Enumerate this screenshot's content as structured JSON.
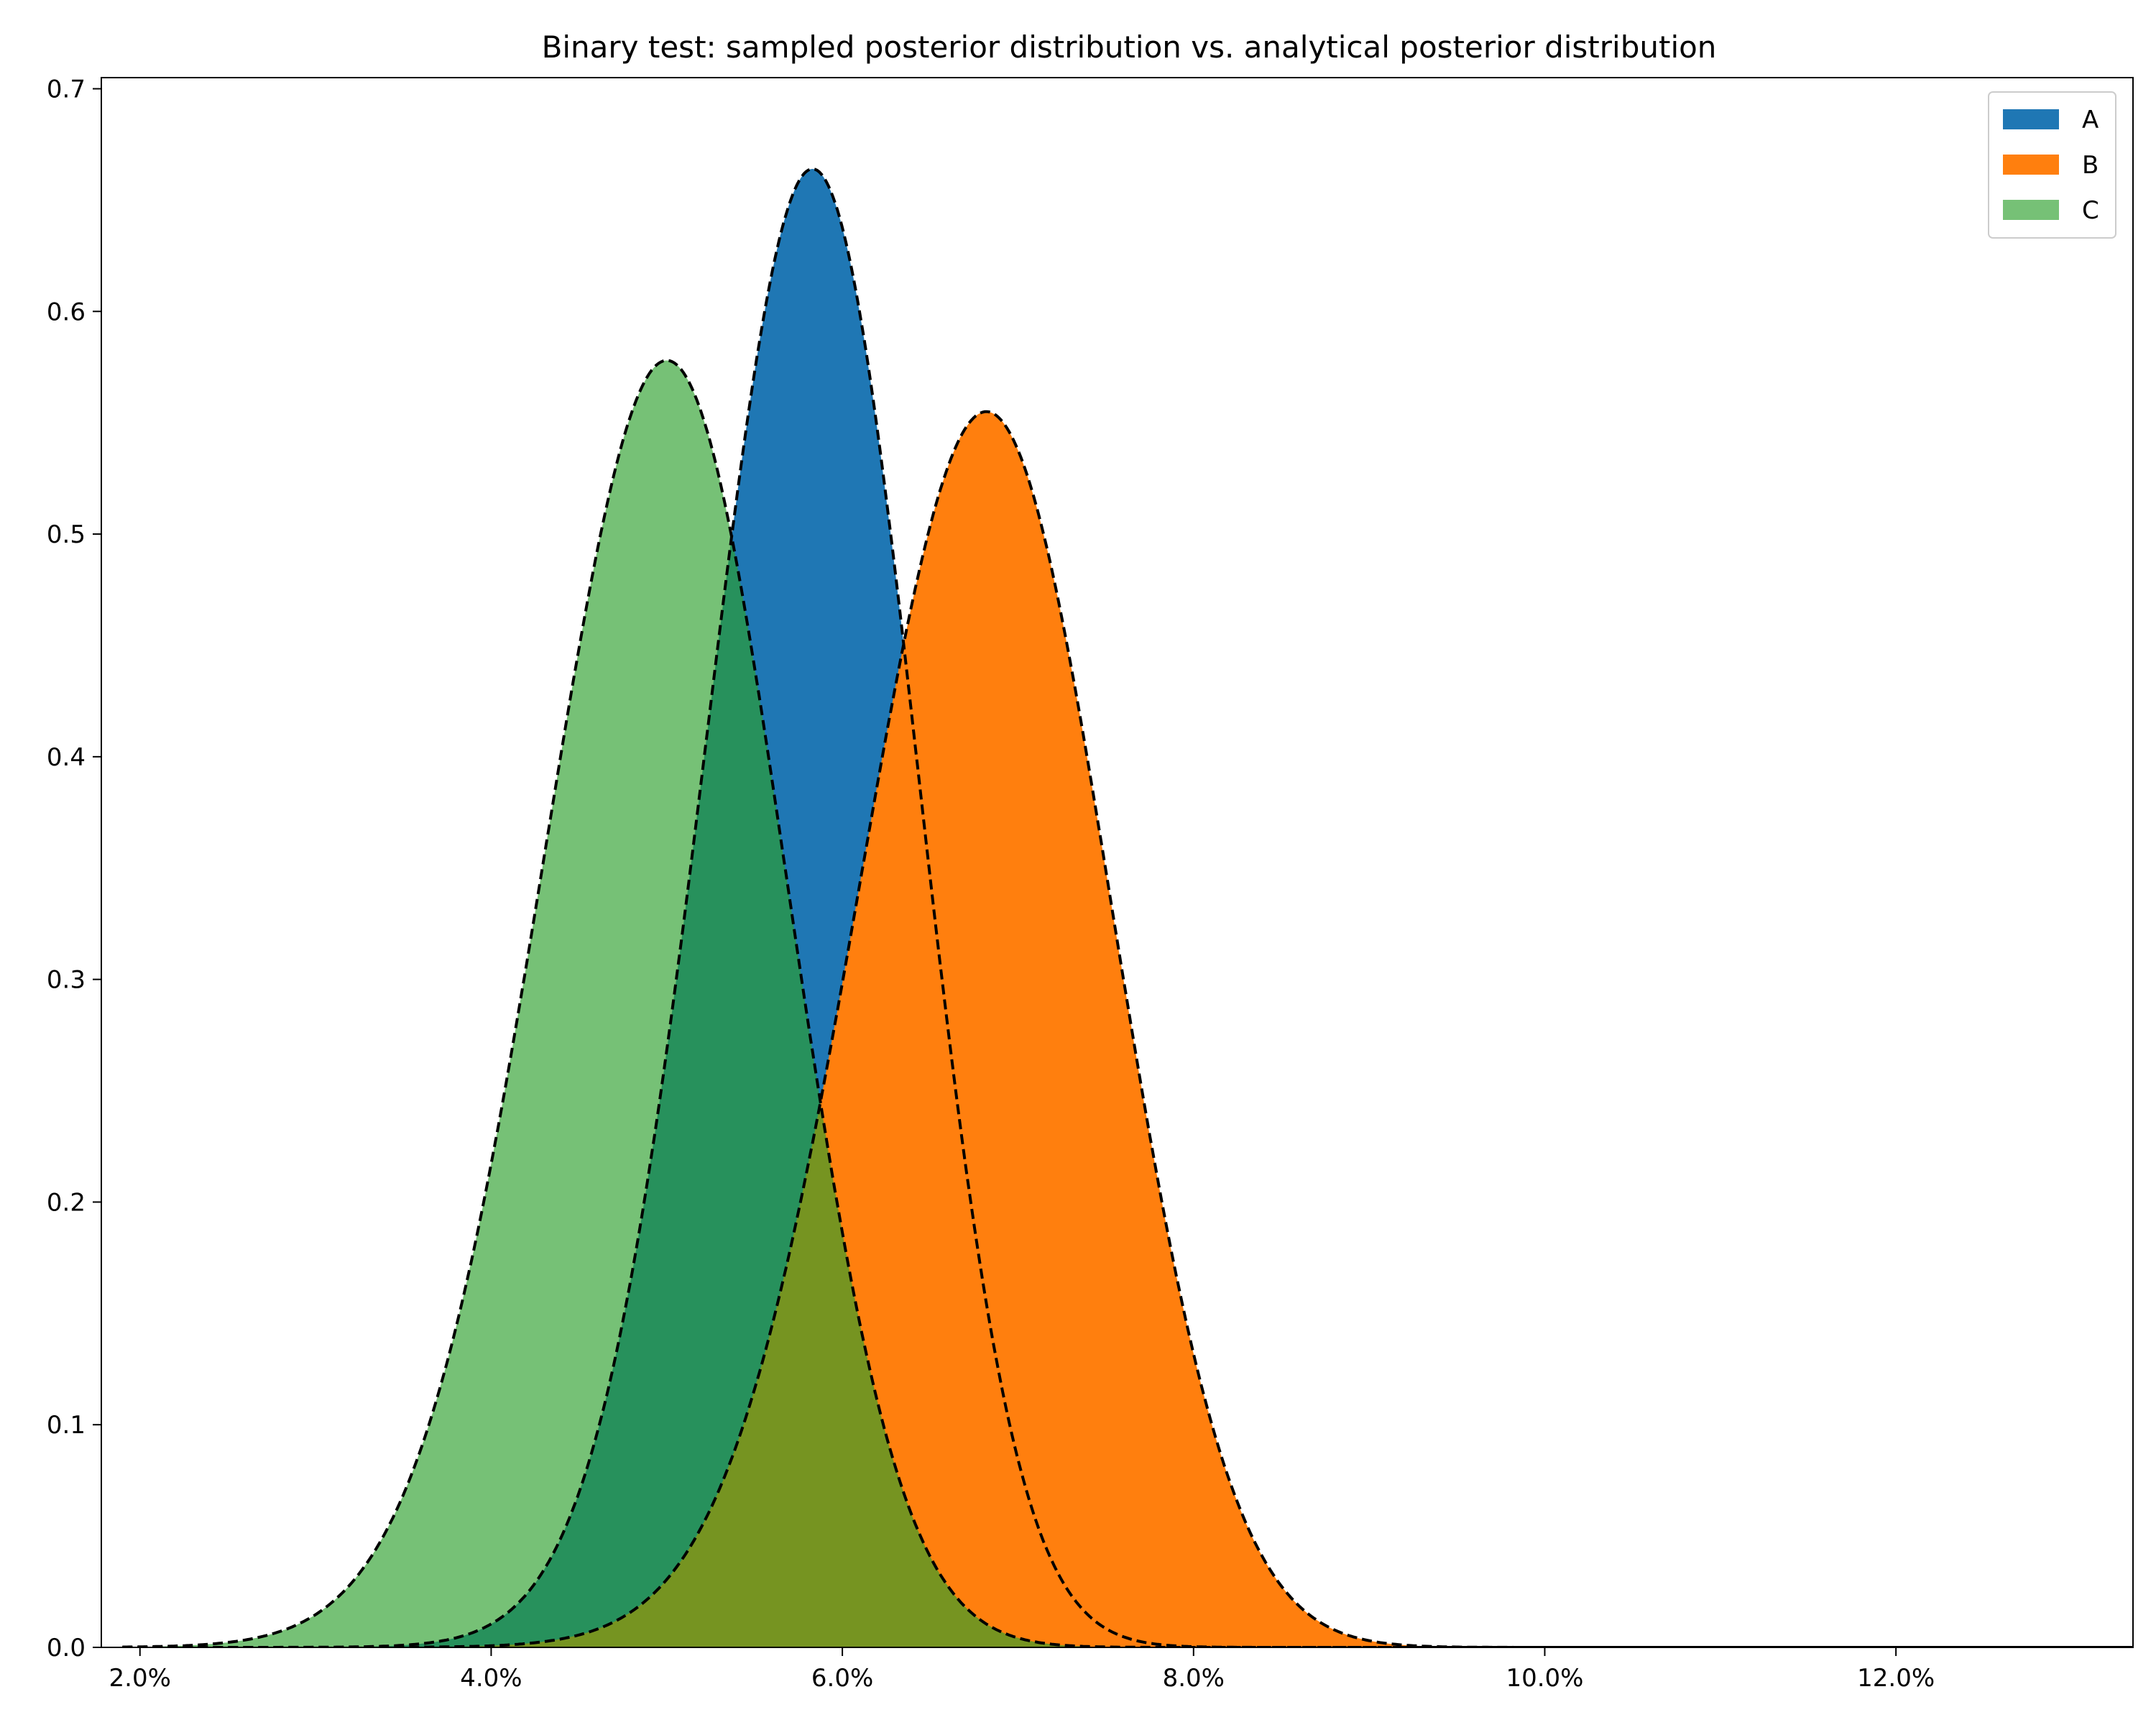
{
  "chart_data": {
    "type": "area",
    "title": "Binary test: sampled posterior distribution vs. analytical posterior distribution",
    "xlabel": "",
    "ylabel": "",
    "xlim": [
      0.0178,
      0.1335
    ],
    "ylim": [
      0,
      0.705
    ],
    "x_ticks": [
      0.02,
      0.04,
      0.06,
      0.08,
      0.1,
      0.12
    ],
    "x_tick_labels": [
      "2.0%",
      "4.0%",
      "6.0%",
      "8.0%",
      "10.0%",
      "12.0%"
    ],
    "y_ticks": [
      0.0,
      0.1,
      0.2,
      0.3,
      0.4,
      0.5,
      0.6,
      0.7
    ],
    "y_tick_labels": [
      "0.0",
      "0.1",
      "0.2",
      "0.3",
      "0.4",
      "0.5",
      "0.6",
      "0.7"
    ],
    "grid": false,
    "legend_position": "top-right",
    "series": [
      {
        "name": "A",
        "color": "#1f77b4",
        "opacity": 1.0,
        "peak_x": 0.0583,
        "peak_y": 0.664,
        "spread": 0.006,
        "skew": 0.04
      },
      {
        "name": "B",
        "color": "#ff7f0e",
        "opacity": 1.0,
        "peak_x": 0.0682,
        "peak_y": 0.555,
        "spread": 0.0072,
        "skew": 0.04
      },
      {
        "name": "C",
        "color": "#2ca02c",
        "opacity": 0.65,
        "peak_x": 0.05,
        "peak_y": 0.578,
        "spread": 0.0069,
        "skew": 0.05
      }
    ],
    "analytical_curve_style": "dashed-black"
  }
}
